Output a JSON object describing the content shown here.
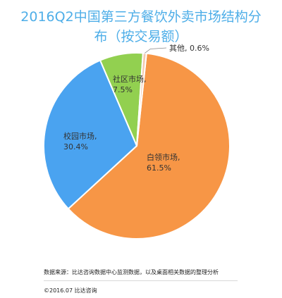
{
  "chart_data": {
    "type": "pie",
    "title_line1": "2016Q2中国第三方餐饮外卖市场结构分",
    "title_line2": "布（按交易额）",
    "categories": [
      "白领市场",
      "校园市场",
      "社区市场",
      "其他"
    ],
    "values": [
      61.5,
      30.4,
      7.5,
      0.6
    ],
    "value_labels": [
      "61.5%",
      "30.4%",
      "7.5%",
      "0.6%"
    ],
    "colors": [
      "#f79646",
      "#4aa3f0",
      "#92d050",
      "#f3c9b0"
    ]
  },
  "footer": {
    "source": "数据来源：比达咨询数据中心监测数据，以及桌面相关数据的整理分析",
    "copyright": "©2016.07  比达咨询"
  }
}
